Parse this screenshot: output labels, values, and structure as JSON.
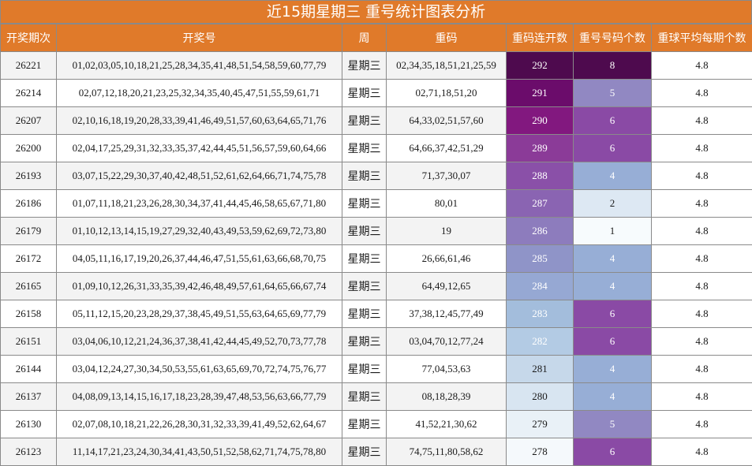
{
  "title": "近15期星期三 重号统计图表分析",
  "headers": [
    "开奖期次",
    "开奖号",
    "周",
    "重码",
    "重码连开数",
    "重号号码个数",
    "重球平均每期个数"
  ],
  "rows": [
    {
      "issue": "26221",
      "numbers": "01,02,03,05,10,18,21,25,28,34,35,41,48,51,54,58,59,60,77,79",
      "weekday": "星期三",
      "repeat": "02,34,35,18,51,21,25,59",
      "streak": "292",
      "count": "8",
      "avg": "4.8",
      "streak_color": "#4e0a4e",
      "count_color": "#4e0a4e"
    },
    {
      "issue": "26214",
      "numbers": "02,07,12,18,20,21,23,25,32,34,35,40,45,47,51,55,59,61,71",
      "weekday": "星期三",
      "repeat": "02,71,18,51,20",
      "streak": "291",
      "count": "5",
      "avg": "4.8",
      "streak_color": "#6b0c6b",
      "count_color": "#9188c2"
    },
    {
      "issue": "26207",
      "numbers": "02,10,16,18,19,20,28,33,39,41,46,49,51,57,60,63,64,65,71,76",
      "weekday": "星期三",
      "repeat": "64,33,02,51,57,60",
      "streak": "290",
      "count": "6",
      "avg": "4.8",
      "streak_color": "#82187f",
      "count_color": "#8a4aa5"
    },
    {
      "issue": "26200",
      "numbers": "02,04,17,25,29,31,32,33,35,37,42,44,45,51,56,57,59,60,64,66",
      "weekday": "星期三",
      "repeat": "64,66,37,42,51,29",
      "streak": "289",
      "count": "6",
      "avg": "4.8",
      "streak_color": "#8b3b98",
      "count_color": "#8a4aa5"
    },
    {
      "issue": "26193",
      "numbers": "03,07,15,22,29,30,37,40,42,48,51,52,61,62,64,66,71,74,75,78",
      "weekday": "星期三",
      "repeat": "71,37,30,07",
      "streak": "288",
      "count": "4",
      "avg": "4.8",
      "streak_color": "#8a50a8",
      "count_color": "#97aed6"
    },
    {
      "issue": "26186",
      "numbers": "01,07,11,18,21,23,26,28,30,34,37,41,44,45,46,58,65,67,71,80",
      "weekday": "星期三",
      "repeat": "80,01",
      "streak": "287",
      "count": "2",
      "avg": "4.8",
      "streak_color": "#8a64b2",
      "count_color": "#dde8f3"
    },
    {
      "issue": "26179",
      "numbers": "01,10,12,13,14,15,19,27,29,32,40,43,49,53,59,62,69,72,73,80",
      "weekday": "星期三",
      "repeat": "19",
      "streak": "286",
      "count": "1",
      "avg": "4.8",
      "streak_color": "#8d7cbd",
      "count_color": "#f7fbfd"
    },
    {
      "issue": "26172",
      "numbers": "04,05,11,16,17,19,20,26,37,44,46,47,51,55,61,63,66,68,70,75",
      "weekday": "星期三",
      "repeat": "26,66,61,46",
      "streak": "285",
      "count": "4",
      "avg": "4.8",
      "streak_color": "#8f94c8",
      "count_color": "#97aed6"
    },
    {
      "issue": "26165",
      "numbers": "01,09,10,12,26,31,33,35,39,42,46,48,49,57,61,64,65,66,67,74",
      "weekday": "星期三",
      "repeat": "64,49,12,65",
      "streak": "284",
      "count": "4",
      "avg": "4.8",
      "streak_color": "#96a8d3",
      "count_color": "#97aed6"
    },
    {
      "issue": "26158",
      "numbers": "05,11,12,15,20,23,28,29,37,38,45,49,51,55,63,64,65,69,77,79",
      "weekday": "星期三",
      "repeat": "37,38,12,45,77,49",
      "streak": "283",
      "count": "6",
      "avg": "4.8",
      "streak_color": "#a3bddc",
      "count_color": "#8a4aa5"
    },
    {
      "issue": "26151",
      "numbers": "03,04,06,10,12,21,24,36,37,38,41,42,44,45,49,52,70,73,77,78",
      "weekday": "星期三",
      "repeat": "03,04,70,12,77,24",
      "streak": "282",
      "count": "6",
      "avg": "4.8",
      "streak_color": "#b3cbe4",
      "count_color": "#8a4aa5"
    },
    {
      "issue": "26144",
      "numbers": "03,04,12,24,27,30,34,50,53,55,61,63,65,69,70,72,74,75,76,77",
      "weekday": "星期三",
      "repeat": "77,04,53,63",
      "streak": "281",
      "count": "4",
      "avg": "4.8",
      "streak_color": "#c6d8ea",
      "count_color": "#97aed6"
    },
    {
      "issue": "26137",
      "numbers": "04,08,09,13,14,15,16,17,18,23,28,39,47,48,53,56,63,66,77,79",
      "weekday": "星期三",
      "repeat": "08,18,28,39",
      "streak": "280",
      "count": "4",
      "avg": "4.8",
      "streak_color": "#d8e5f1",
      "count_color": "#97aed6"
    },
    {
      "issue": "26130",
      "numbers": "02,07,08,10,18,21,22,26,28,30,31,32,33,39,41,49,52,62,64,67",
      "weekday": "星期三",
      "repeat": "41,52,21,30,62",
      "streak": "279",
      "count": "5",
      "avg": "4.8",
      "streak_color": "#e9f1f7",
      "count_color": "#9188c2"
    },
    {
      "issue": "26123",
      "numbers": "11,14,17,21,23,24,30,34,41,43,50,51,52,58,62,71,74,75,78,80",
      "weekday": "星期三",
      "repeat": "74,75,11,80,58,62",
      "streak": "278",
      "count": "6",
      "avg": "4.8",
      "streak_color": "#f5f9fc",
      "count_color": "#8a4aa5"
    }
  ]
}
